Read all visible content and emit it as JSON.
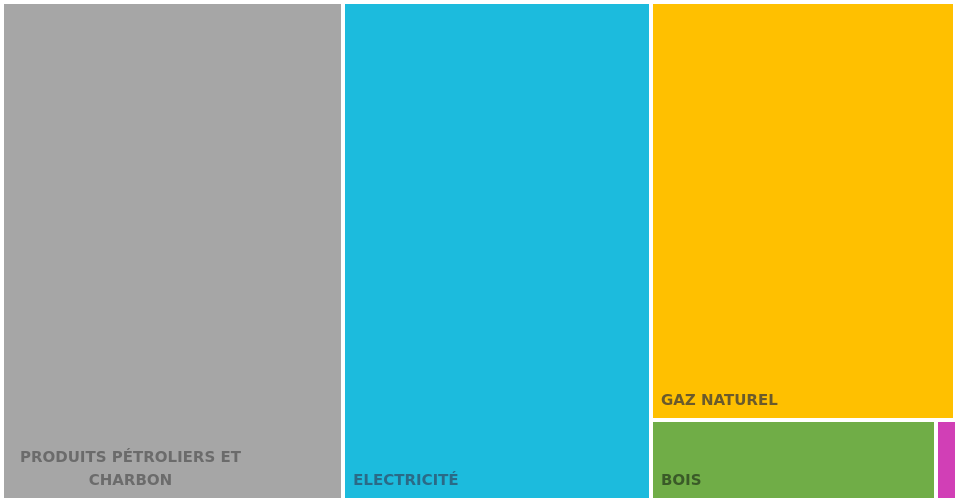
{
  "chart_data": {
    "type": "treemap",
    "title": "",
    "items": [
      {
        "name": "Produits pétroliers et charbon",
        "label_lines": [
          "Produits pétroliers et",
          "charbon"
        ],
        "value": 35.8,
        "color": "#a6a6a6",
        "label_color": "#6b6b6b"
      },
      {
        "name": "Electricité",
        "label_lines": [
          "Electricité"
        ],
        "value": 32.3,
        "color": "#1cbbdd",
        "label_color": "#2a6a87"
      },
      {
        "name": "Gaz naturel",
        "label_lines": [
          "Gaz naturel"
        ],
        "value": 27.0,
        "color": "#ffc000",
        "label_color": "#6a5a2c"
      },
      {
        "name": "Bois",
        "label_lines": [
          "Bois"
        ],
        "value": 4.6,
        "color": "#70ad47",
        "label_color": "#3a5a28"
      },
      {
        "name": "",
        "label_lines": [],
        "value": 0.3,
        "color": "#d13fb6",
        "label_color": "#d13fb6"
      }
    ]
  }
}
